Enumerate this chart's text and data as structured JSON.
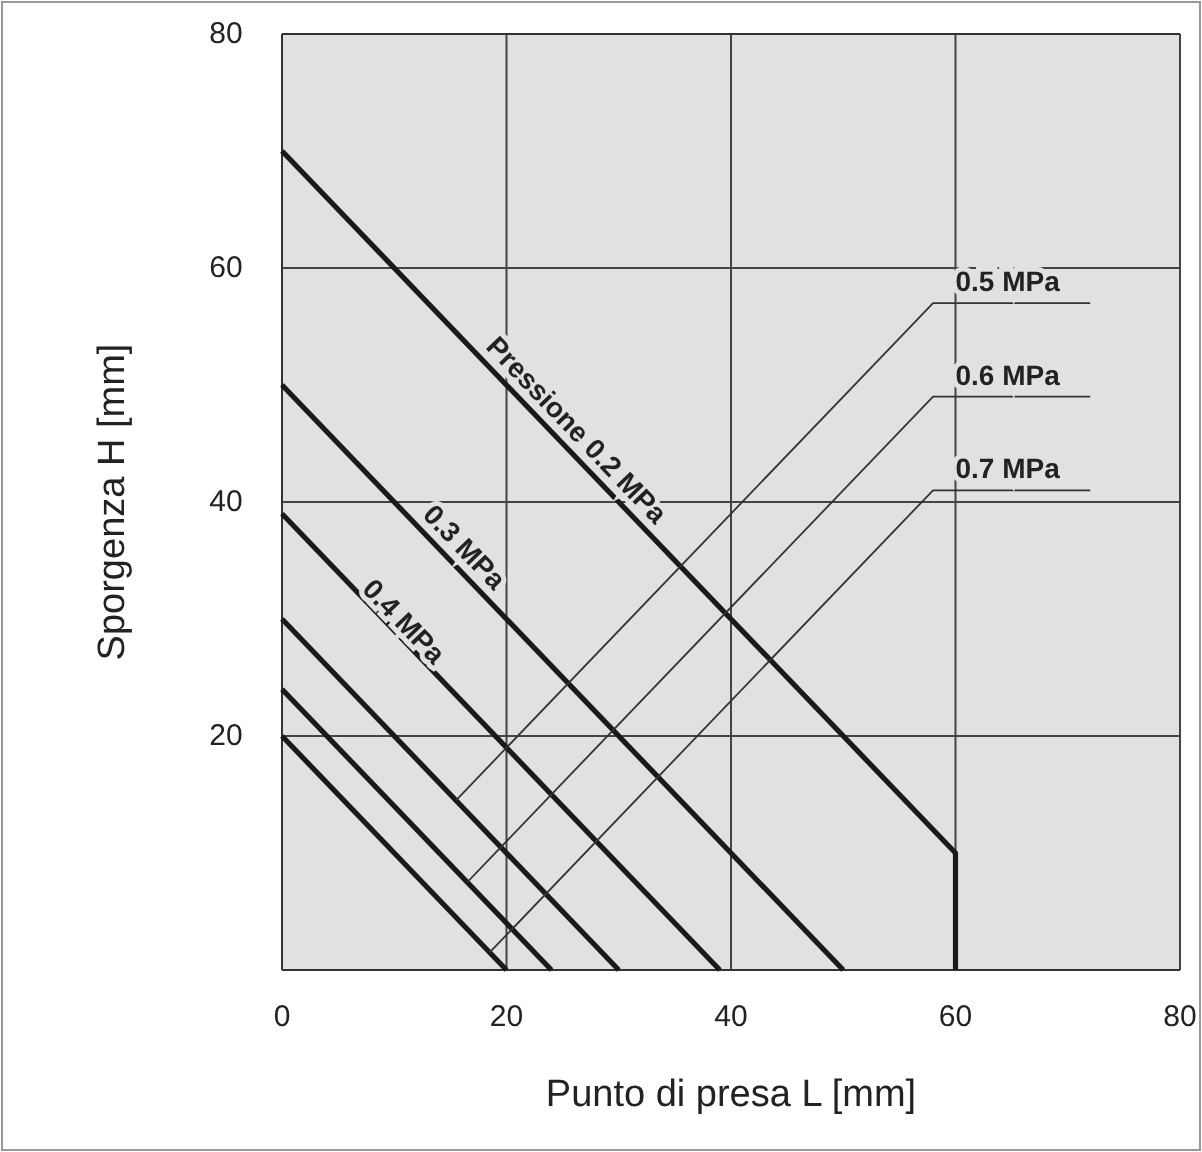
{
  "chart_data": {
    "type": "line",
    "xlabel": "Punto di presa L [mm]",
    "ylabel": "Sporgenza H [mm]",
    "xlim": [
      0,
      80
    ],
    "ylim": [
      0,
      80
    ],
    "xticks": [
      0,
      20,
      40,
      60,
      80
    ],
    "yticks": [
      20,
      40,
      60,
      80
    ],
    "grid": true,
    "legend": false,
    "marker": "none",
    "line_style": "solid",
    "series": [
      {
        "name": "Pressione 0.2 MPa",
        "color": "#1a1a1a",
        "x": [
          0,
          60,
          60
        ],
        "values": [
          70,
          10,
          0
        ]
      },
      {
        "name": "0.3 MPa",
        "color": "#1a1a1a",
        "x": [
          0,
          50
        ],
        "values": [
          50,
          0
        ]
      },
      {
        "name": "0.4 MPa",
        "color": "#1a1a1a",
        "x": [
          0,
          39
        ],
        "values": [
          39,
          0
        ]
      },
      {
        "name": "0.5 MPa",
        "color": "#1a1a1a",
        "x": [
          0,
          30
        ],
        "values": [
          30,
          0
        ]
      },
      {
        "name": "0.6 MPa",
        "color": "#1a1a1a",
        "x": [
          0,
          24
        ],
        "values": [
          24,
          0
        ]
      },
      {
        "name": "0.7 MPa",
        "color": "#1a1a1a",
        "x": [
          0,
          20
        ],
        "values": [
          20,
          0
        ]
      }
    ]
  }
}
